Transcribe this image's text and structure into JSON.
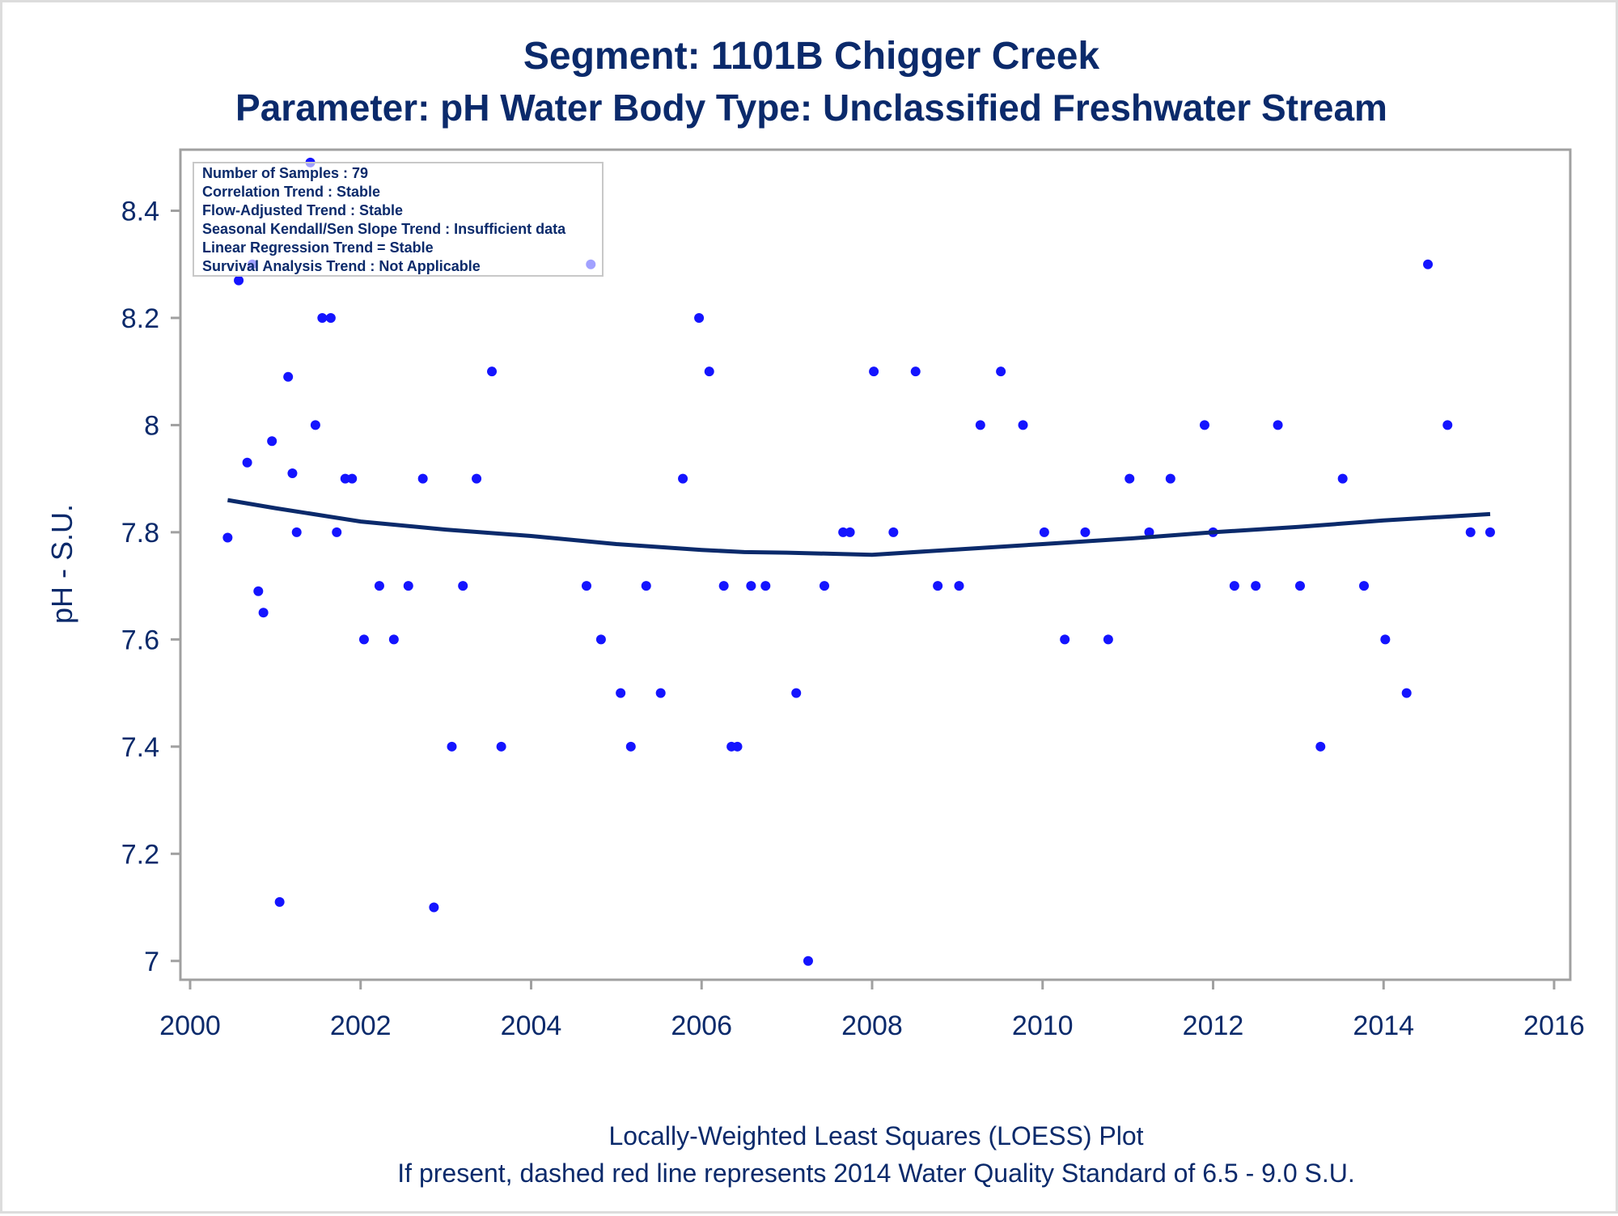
{
  "chart_data": {
    "type": "scatter",
    "title": "Segment: 1101B  Chigger Creek",
    "subtitle": "Parameter: pH   Water Body Type: Unclassified Freshwater Stream",
    "xlabel": "",
    "ylabel": "pH - S.U.",
    "xlim": [
      2000,
      2016
    ],
    "ylim": [
      6.98,
      8.52
    ],
    "x_ticks": [
      "2000",
      "2002",
      "2004",
      "2006",
      "2008",
      "2010",
      "2012",
      "2014",
      "2016"
    ],
    "y_ticks": [
      "7",
      "7.2",
      "7.4",
      "7.6",
      "7.8",
      "8",
      "8.2",
      "8.4"
    ],
    "grid": false,
    "point_color": "#1414ff",
    "line_color": "#0b2a6b",
    "stats": [
      "Number of Samples : 79",
      "Correlation Trend : Stable",
      "Flow-Adjusted Trend : Stable",
      "Seasonal Kendall/Sen Slope Trend : Insufficient data",
      "Linear Regression Trend = Stable",
      "Survival Analysis Trend : Not Applicable"
    ],
    "footnotes": [
      "Locally-Weighted Least Squares (LOESS) Plot",
      "If present, dashed red line represents 2014 Water Quality Standard of 6.5 - 9.0 S.U."
    ],
    "points": [
      [
        2000.44,
        7.79
      ],
      [
        2000.57,
        8.27
      ],
      [
        2000.67,
        7.93
      ],
      [
        2000.73,
        8.3
      ],
      [
        2000.8,
        7.69
      ],
      [
        2000.86,
        7.65
      ],
      [
        2000.96,
        7.97
      ],
      [
        2001.05,
        7.11
      ],
      [
        2001.15,
        8.09
      ],
      [
        2001.2,
        7.91
      ],
      [
        2001.25,
        7.8
      ],
      [
        2001.47,
        8.0
      ],
      [
        2001.41,
        8.49
      ],
      [
        2001.55,
        8.2
      ],
      [
        2001.65,
        8.2
      ],
      [
        2001.72,
        7.8
      ],
      [
        2001.82,
        7.9
      ],
      [
        2001.9,
        7.9
      ],
      [
        2002.04,
        7.6
      ],
      [
        2002.22,
        7.7
      ],
      [
        2002.39,
        7.6
      ],
      [
        2002.56,
        7.7
      ],
      [
        2002.73,
        7.9
      ],
      [
        2002.86,
        7.1
      ],
      [
        2003.07,
        7.4
      ],
      [
        2003.2,
        7.7
      ],
      [
        2003.36,
        7.9
      ],
      [
        2003.54,
        8.1
      ],
      [
        2003.65,
        7.4
      ],
      [
        2004.65,
        7.7
      ],
      [
        2004.7,
        8.3
      ],
      [
        2004.82,
        7.6
      ],
      [
        2005.05,
        7.5
      ],
      [
        2005.17,
        7.4
      ],
      [
        2005.35,
        7.7
      ],
      [
        2005.52,
        7.5
      ],
      [
        2005.78,
        7.9
      ],
      [
        2005.97,
        8.2
      ],
      [
        2006.09,
        8.1
      ],
      [
        2006.26,
        7.7
      ],
      [
        2006.35,
        7.4
      ],
      [
        2006.42,
        7.4
      ],
      [
        2006.58,
        7.7
      ],
      [
        2006.75,
        7.7
      ],
      [
        2007.11,
        7.5
      ],
      [
        2007.25,
        7.0
      ],
      [
        2007.44,
        7.7
      ],
      [
        2007.66,
        7.8
      ],
      [
        2007.74,
        7.8
      ],
      [
        2008.02,
        8.1
      ],
      [
        2008.25,
        7.8
      ],
      [
        2008.51,
        8.1
      ],
      [
        2008.77,
        7.7
      ],
      [
        2009.02,
        7.7
      ],
      [
        2009.27,
        8.0
      ],
      [
        2009.51,
        8.1
      ],
      [
        2009.77,
        8.0
      ],
      [
        2010.02,
        7.8
      ],
      [
        2010.26,
        7.6
      ],
      [
        2010.5,
        7.8
      ],
      [
        2010.77,
        7.6
      ],
      [
        2011.02,
        7.9
      ],
      [
        2011.25,
        7.8
      ],
      [
        2011.5,
        7.9
      ],
      [
        2011.9,
        8.0
      ],
      [
        2012.0,
        7.8
      ],
      [
        2012.25,
        7.7
      ],
      [
        2012.5,
        7.7
      ],
      [
        2012.76,
        8.0
      ],
      [
        2013.02,
        7.7
      ],
      [
        2013.26,
        7.4
      ],
      [
        2013.52,
        7.9
      ],
      [
        2013.77,
        7.7
      ],
      [
        2014.02,
        7.6
      ],
      [
        2014.27,
        7.5
      ],
      [
        2014.52,
        8.3
      ],
      [
        2014.75,
        8.0
      ],
      [
        2015.02,
        7.8
      ],
      [
        2015.25,
        7.8
      ]
    ],
    "loess": [
      [
        2000.44,
        7.86
      ],
      [
        2001.0,
        7.845
      ],
      [
        2002.0,
        7.82
      ],
      [
        2003.0,
        7.805
      ],
      [
        2004.0,
        7.793
      ],
      [
        2005.0,
        7.778
      ],
      [
        2006.0,
        7.767
      ],
      [
        2006.5,
        7.763
      ],
      [
        2007.0,
        7.762
      ],
      [
        2007.5,
        7.76
      ],
      [
        2008.0,
        7.758
      ],
      [
        2009.0,
        7.768
      ],
      [
        2010.0,
        7.778
      ],
      [
        2011.0,
        7.788
      ],
      [
        2012.0,
        7.8
      ],
      [
        2013.0,
        7.81
      ],
      [
        2014.0,
        7.822
      ],
      [
        2015.25,
        7.834
      ]
    ]
  }
}
